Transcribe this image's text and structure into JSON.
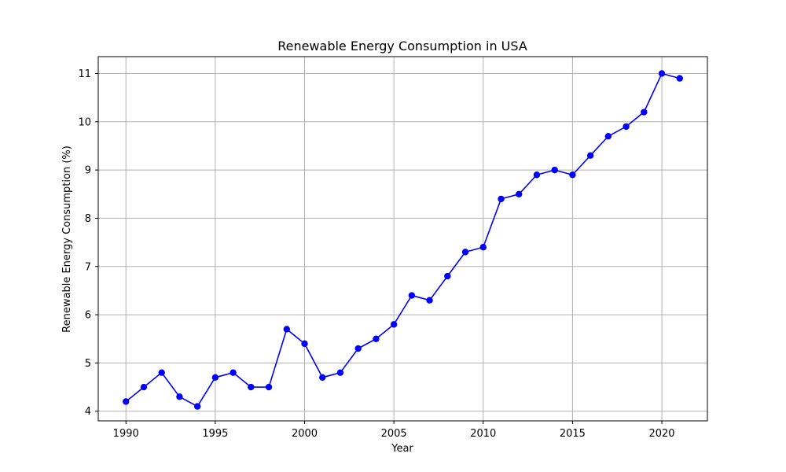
{
  "chart_data": {
    "type": "line",
    "title": "Renewable Energy Consumption in USA",
    "xlabel": "Year",
    "ylabel": "Renewable Energy Consumption (%)",
    "xlim": [
      1988.45,
      2022.55
    ],
    "ylim": [
      3.8,
      11.35
    ],
    "xticks": [
      1990,
      1995,
      2000,
      2005,
      2010,
      2015,
      2020
    ],
    "yticks": [
      4,
      5,
      6,
      7,
      8,
      9,
      10,
      11
    ],
    "grid": true,
    "line_color": "#0000ff",
    "marker": "circle",
    "x": [
      1990,
      1991,
      1992,
      1993,
      1994,
      1995,
      1996,
      1997,
      1998,
      1999,
      2000,
      2001,
      2002,
      2003,
      2004,
      2005,
      2006,
      2007,
      2008,
      2009,
      2010,
      2011,
      2012,
      2013,
      2014,
      2015,
      2016,
      2017,
      2018,
      2019,
      2020,
      2021
    ],
    "y": [
      4.2,
      4.5,
      4.8,
      4.3,
      4.1,
      4.7,
      4.8,
      4.5,
      4.5,
      5.7,
      5.4,
      4.7,
      4.8,
      5.3,
      5.5,
      5.8,
      6.4,
      6.3,
      6.8,
      7.3,
      7.4,
      8.4,
      8.5,
      8.9,
      9.0,
      8.9,
      9.3,
      9.7,
      9.9,
      10.2,
      11.0,
      10.9
    ]
  }
}
